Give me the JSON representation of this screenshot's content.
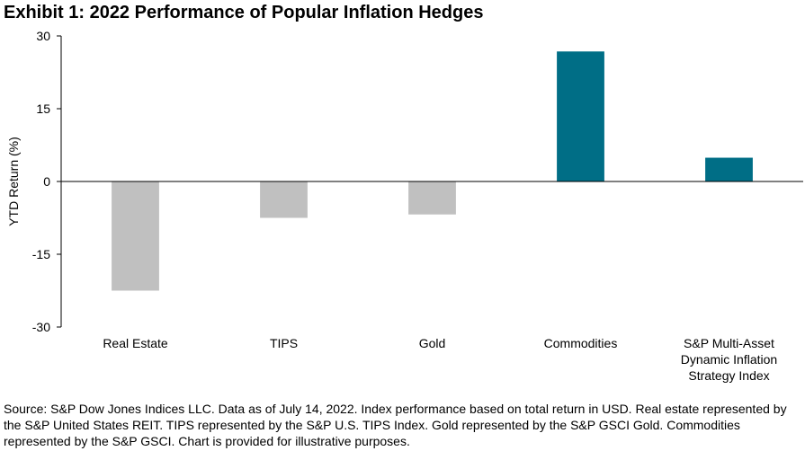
{
  "chart_data": {
    "type": "bar",
    "title": "Exhibit 1: 2022 Performance of Popular Inflation Hedges",
    "ylabel": "YTD Return (%)",
    "xlabel": "",
    "ylim": [
      -30,
      30
    ],
    "yticks": [
      30,
      15,
      0,
      -15,
      -30
    ],
    "yticks_labels": [
      "30",
      "15",
      "0",
      "-15",
      "-30"
    ],
    "grid": false,
    "categories": [
      [
        "Real Estate"
      ],
      [
        "TIPS"
      ],
      [
        "Gold"
      ],
      [
        "Commodities"
      ],
      [
        "S&P Multi-Asset",
        "Dynamic Inflation",
        "Strategy Index"
      ]
    ],
    "values": [
      -22.5,
      -7.5,
      -6.8,
      26.8,
      4.9
    ],
    "colors": [
      "#c0c0c0",
      "#c0c0c0",
      "#c0c0c0",
      "#006e86",
      "#006e86"
    ]
  },
  "source_note": "Source: S&P Dow Jones Indices LLC. Data as of July 14, 2022. Index performance based on total return in USD. Real estate represented by the S&P United States REIT. TIPS represented by the S&P U.S. TIPS Index. Gold represented by the S&P GSCI Gold. Commodities represented by the S&P GSCI. Chart is provided for illustrative purposes."
}
